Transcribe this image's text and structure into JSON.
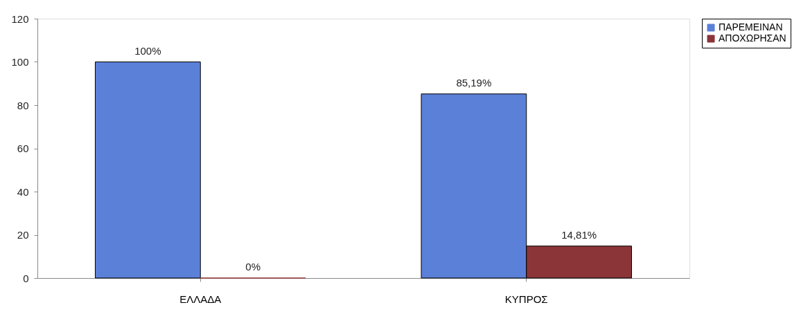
{
  "chart_data": {
    "type": "bar",
    "categories": [
      "ΕΛΛΑΔΑ",
      "ΚΥΠΡΟΣ"
    ],
    "series": [
      {
        "name": "ΠΑΡΕΜΕΙΝΑΝ",
        "color": "#5b80d8",
        "values": [
          100,
          85.19
        ],
        "value_labels": [
          "100%",
          "85,19%"
        ]
      },
      {
        "name": "ΑΠΟΧΩΡΗΣΑΝ",
        "color": "#8b3538",
        "values": [
          0,
          14.81
        ],
        "value_labels": [
          "0%",
          "14,81%"
        ]
      }
    ],
    "ylim": [
      0,
      120
    ],
    "yticks": [
      0,
      20,
      40,
      60,
      80,
      100,
      120
    ],
    "grid": false,
    "legend": "right"
  }
}
